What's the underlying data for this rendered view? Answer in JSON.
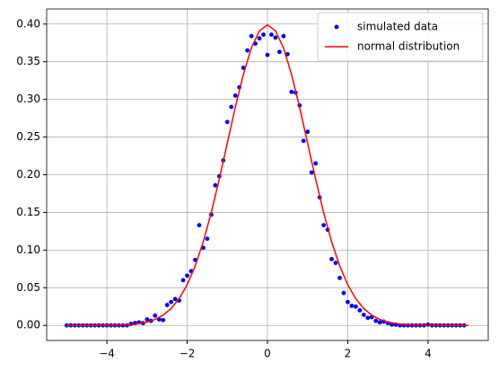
{
  "chart_data": {
    "type": "scatter",
    "xlim": [
      -5.5,
      5.5
    ],
    "ylim": [
      -0.02,
      0.42
    ],
    "xticks": [
      {
        "value": -4,
        "label": "−4"
      },
      {
        "value": -2,
        "label": "−2"
      },
      0,
      2,
      4
    ],
    "yticks": [
      {
        "value": 0,
        "label": "0.00"
      },
      {
        "value": 0.05,
        "label": "0.05"
      },
      {
        "value": 0.1,
        "label": "0.10"
      },
      {
        "value": 0.15,
        "label": "0.15"
      },
      {
        "value": 0.2,
        "label": "0.20"
      },
      {
        "value": 0.25,
        "label": "0.25"
      },
      {
        "value": 0.3,
        "label": "0.30"
      },
      {
        "value": 0.35,
        "label": "0.35"
      },
      {
        "value": 0.4,
        "label": "0.40"
      }
    ],
    "grid": true,
    "legend": "upper right",
    "series": [
      {
        "name": "simulated data",
        "type": "scatter",
        "color": "#0000ff",
        "x": [
          -5.0,
          -4.9,
          -4.8,
          -4.7,
          -4.6,
          -4.5,
          -4.4,
          -4.3,
          -4.2,
          -4.1,
          -4.0,
          -3.9,
          -3.8,
          -3.7,
          -3.6,
          -3.5,
          -3.4,
          -3.3,
          -3.2,
          -3.1,
          -3.0,
          -2.9,
          -2.8,
          -2.7,
          -2.6,
          -2.5,
          -2.4,
          -2.3,
          -2.2,
          -2.1,
          -2.0,
          -1.9,
          -1.8,
          -1.7,
          -1.6,
          -1.5,
          -1.4,
          -1.3,
          -1.2,
          -1.1,
          -1.0,
          -0.9,
          -0.8,
          -0.7,
          -0.6,
          -0.5,
          -0.4,
          -0.3,
          -0.2,
          -0.1,
          0.0,
          0.1,
          0.2,
          0.3,
          0.4,
          0.5,
          0.6,
          0.7,
          0.8,
          0.9,
          1.0,
          1.1,
          1.2,
          1.3,
          1.4,
          1.5,
          1.6,
          1.7,
          1.8,
          1.9,
          2.0,
          2.1,
          2.2,
          2.3,
          2.4,
          2.5,
          2.6,
          2.7,
          2.8,
          2.9,
          3.0,
          3.1,
          3.2,
          3.3,
          3.4,
          3.5,
          3.6,
          3.7,
          3.8,
          3.9,
          4.0,
          4.1,
          4.2,
          4.3,
          4.4,
          4.5,
          4.6,
          4.7,
          4.8,
          4.9
        ],
        "values": [
          0,
          0,
          0,
          0,
          0,
          0,
          0,
          0,
          0,
          0,
          0,
          0,
          0,
          0,
          0,
          0,
          0.002,
          0.003,
          0.004,
          0.003,
          0.008,
          0.006,
          0.013,
          0.008,
          0.007,
          0.027,
          0.031,
          0.035,
          0.033,
          0.06,
          0.066,
          0.072,
          0.087,
          0.133,
          0.103,
          0.115,
          0.147,
          0.186,
          0.198,
          0.219,
          0.27,
          0.29,
          0.305,
          0.316,
          0.342,
          0.365,
          0.384,
          0.374,
          0.381,
          0.386,
          0.359,
          0.386,
          0.382,
          0.363,
          0.384,
          0.36,
          0.31,
          0.309,
          0.292,
          0.245,
          0.257,
          0.203,
          0.215,
          0.17,
          0.133,
          0.127,
          0.088,
          0.083,
          0.063,
          0.043,
          0.031,
          0.026,
          0.025,
          0.02,
          0.014,
          0.01,
          0.011,
          0.006,
          0.004,
          0.005,
          0.003,
          0.001,
          0.001,
          0,
          0,
          0,
          0,
          0,
          0,
          0,
          0.001,
          0,
          0,
          0,
          0,
          0,
          0,
          0,
          0,
          0
        ]
      },
      {
        "name": "normal distribution",
        "type": "line",
        "color": "#ff0000",
        "x": [
          -5.0,
          -4.8,
          -4.6,
          -4.4,
          -4.2,
          -4.0,
          -3.8,
          -3.6,
          -3.4,
          -3.2,
          -3.0,
          -2.8,
          -2.6,
          -2.4,
          -2.2,
          -2.0,
          -1.8,
          -1.6,
          -1.4,
          -1.2,
          -1.0,
          -0.8,
          -0.6,
          -0.4,
          -0.2,
          0.0,
          0.2,
          0.4,
          0.6,
          0.8,
          1.0,
          1.2,
          1.4,
          1.6,
          1.8,
          2.0,
          2.2,
          2.4,
          2.6,
          2.8,
          3.0,
          3.2,
          3.4,
          3.6,
          3.8,
          4.0,
          4.2,
          4.4,
          4.6,
          4.8,
          5.0
        ],
        "values": [
          0,
          0,
          0,
          0,
          0.0001,
          0.0001,
          0.0003,
          0.0006,
          0.0012,
          0.0024,
          0.0044,
          0.0079,
          0.0136,
          0.0224,
          0.0355,
          0.054,
          0.079,
          0.1109,
          0.1497,
          0.1942,
          0.242,
          0.2897,
          0.3332,
          0.3683,
          0.391,
          0.3989,
          0.391,
          0.3683,
          0.3332,
          0.2897,
          0.242,
          0.1942,
          0.1497,
          0.1109,
          0.079,
          0.054,
          0.0355,
          0.0224,
          0.0136,
          0.0079,
          0.0044,
          0.0024,
          0.0012,
          0.0006,
          0.0003,
          0.0001,
          0.0001,
          0,
          0,
          0,
          0
        ]
      }
    ]
  }
}
